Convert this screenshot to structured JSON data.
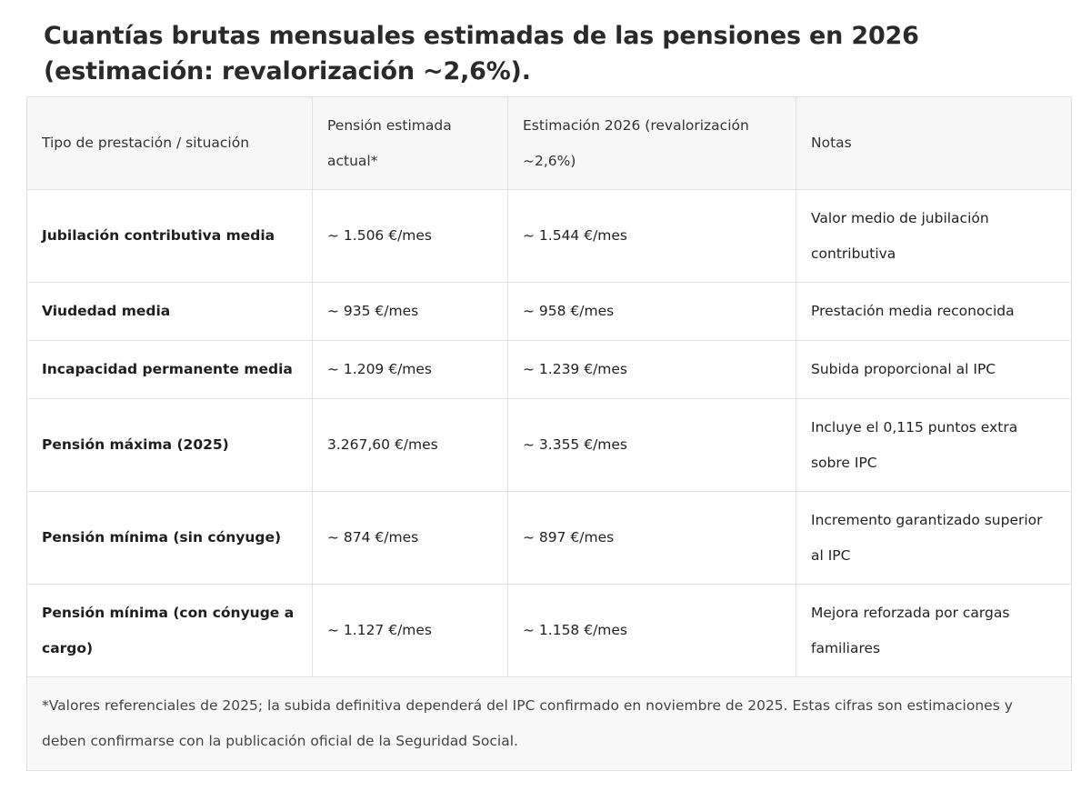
{
  "title": "Cuantías brutas mensuales estimadas de las pensiones en 2026 (estimación: revalorización ~2,6%).",
  "table": {
    "headers": [
      "Tipo de prestación / situación",
      "Pensión estimada actual*",
      "Estimación 2026 (revalorización ~2,6%)",
      "Notas"
    ],
    "rows": [
      [
        "Jubilación contributiva media",
        "~ 1.506 €/mes",
        "~ 1.544 €/mes",
        "Valor medio de jubilación contributiva"
      ],
      [
        "Viudedad media",
        "~ 935 €/mes",
        "~ 958 €/mes",
        "Prestación media reconocida"
      ],
      [
        "Incapacidad permanente media",
        "~ 1.209 €/mes",
        "~ 1.239 €/mes",
        "Subida proporcional al IPC"
      ],
      [
        "Pensión máxima (2025)",
        "3.267,60 €/mes",
        "~ 3.355 €/mes",
        "Incluye el 0,115 puntos extra sobre IPC"
      ],
      [
        "Pensión mínima (sin cónyuge)",
        "~ 874 €/mes",
        "~ 897 €/mes",
        "Incremento garantizado superior al IPC"
      ],
      [
        "Pensión mínima (con cónyuge a cargo)",
        "~ 1.127 €/mes",
        "~ 1.158 €/mes",
        "Mejora reforzada por cargas familiares"
      ]
    ],
    "footnote": "*Valores referenciales de 2025; la subida definitiva dependerá del IPC confirmado en noviembre de 2025. Estas cifras son estimaciones y deben confirmarse con la publicación oficial de la Seguridad Social."
  }
}
